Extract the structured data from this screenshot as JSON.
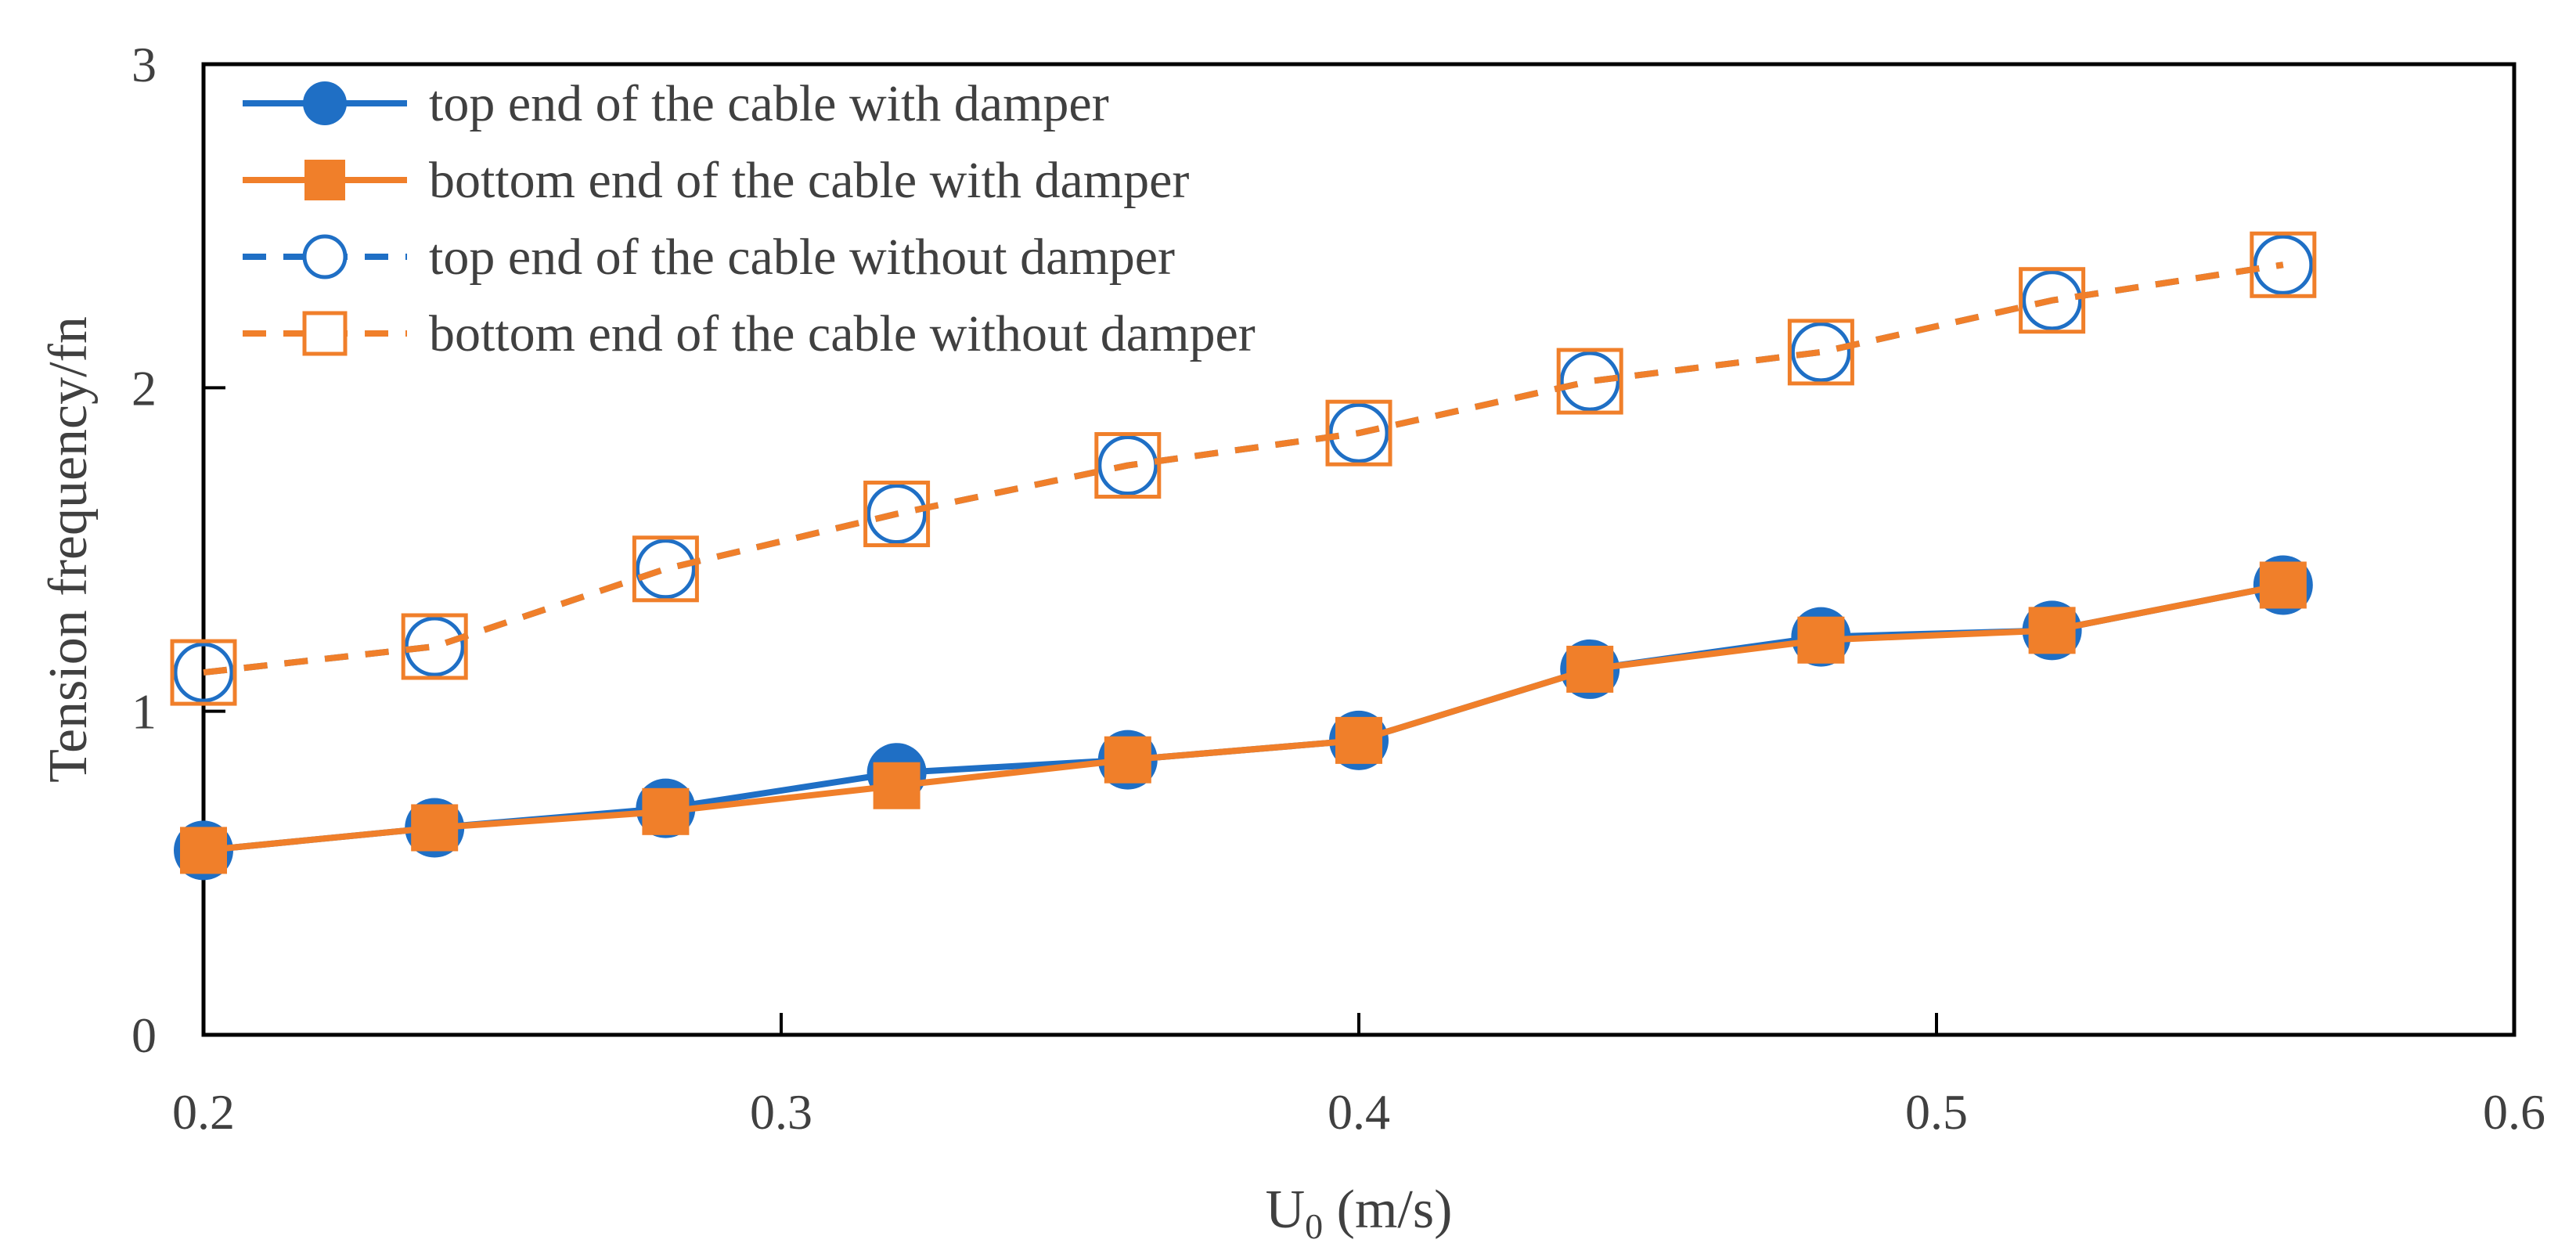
{
  "chart_data": {
    "type": "line",
    "title": "",
    "xlabel": "U",
    "xlabel_subscript": "0",
    "xlabel_unit": " (m/s)",
    "ylabel": "Tension frequency/fn",
    "xlim": [
      0.2,
      0.6
    ],
    "ylim": [
      0,
      3
    ],
    "xticks": [
      "0.2",
      "0.3",
      "0.4",
      "0.5",
      "0.6"
    ],
    "yticks": [
      "0",
      "1",
      "2",
      "3"
    ],
    "grid": false,
    "legend_position": "top-left",
    "x": [
      0.2,
      0.24,
      0.28,
      0.32,
      0.36,
      0.4,
      0.44,
      0.48,
      0.52,
      0.56
    ],
    "series": [
      {
        "name": "top end of the cable with damper",
        "values": [
          0.57,
          0.64,
          0.7,
          0.81,
          0.85,
          0.91,
          1.13,
          1.23,
          1.25,
          1.39
        ],
        "color": "#1f6fc5",
        "line": "solid",
        "marker": "circle-filled"
      },
      {
        "name": "bottom end of the cable with damper",
        "values": [
          0.57,
          0.64,
          0.69,
          0.77,
          0.85,
          0.91,
          1.13,
          1.22,
          1.25,
          1.39
        ],
        "color": "#f07f2a",
        "line": "solid",
        "marker": "square-filled"
      },
      {
        "name": "top end of the cable without damper",
        "values": [
          1.12,
          1.2,
          1.44,
          1.61,
          1.76,
          1.86,
          2.02,
          2.11,
          2.27,
          2.38
        ],
        "color": "#1f6fc5",
        "line": "dashed",
        "marker": "circle-open"
      },
      {
        "name": "bottom end of the cable without damper",
        "values": [
          1.12,
          1.2,
          1.44,
          1.61,
          1.76,
          1.86,
          2.02,
          2.11,
          2.27,
          2.38
        ],
        "color": "#f07f2a",
        "line": "dashed",
        "marker": "square-open"
      }
    ]
  }
}
